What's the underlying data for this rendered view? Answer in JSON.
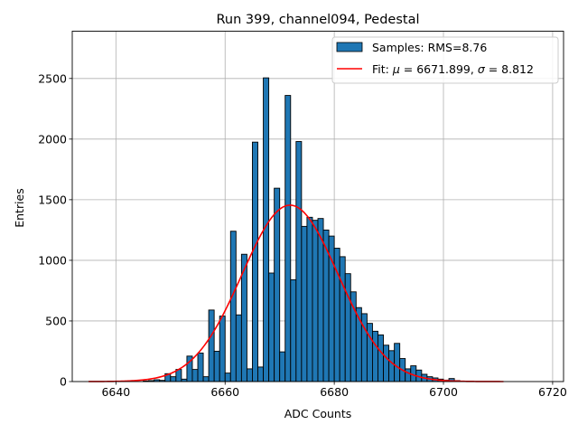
{
  "chart_data": {
    "type": "histogram",
    "title": "Run 399, channel094, Pedestal",
    "xlabel": "ADC Counts",
    "ylabel": "Entries",
    "xlim": [
      6632,
      6722
    ],
    "ylim": [
      0,
      2890
    ],
    "xticks": [
      6640,
      6660,
      6680,
      6700,
      6720
    ],
    "yticks": [
      0,
      500,
      1000,
      1500,
      2000,
      2500
    ],
    "grid": true,
    "legend": {
      "position": "top-right",
      "samples_label": "Samples: RMS=8.76",
      "fit_label_prefix": "Fit: ",
      "mu_symbol": "μ",
      "mu_text": " = 6671.899, ",
      "sigma_symbol": "σ",
      "sigma_text": " = 8.812"
    },
    "bar_color": "#1f77b4",
    "fit_color": "#ff0000",
    "bin_width": 1,
    "bins": [
      [
        6645,
        5
      ],
      [
        6646,
        8
      ],
      [
        6647,
        15
      ],
      [
        6648,
        10
      ],
      [
        6649,
        65
      ],
      [
        6650,
        40
      ],
      [
        6651,
        100
      ],
      [
        6652,
        20
      ],
      [
        6653,
        210
      ],
      [
        6654,
        100
      ],
      [
        6655,
        235
      ],
      [
        6656,
        40
      ],
      [
        6657,
        590
      ],
      [
        6658,
        250
      ],
      [
        6659,
        540
      ],
      [
        6660,
        70
      ],
      [
        6661,
        1240
      ],
      [
        6662,
        550
      ],
      [
        6663,
        1050
      ],
      [
        6664,
        105
      ],
      [
        6665,
        1975
      ],
      [
        6666,
        120
      ],
      [
        6667,
        2505
      ],
      [
        6668,
        895
      ],
      [
        6669,
        1595
      ],
      [
        6670,
        245
      ],
      [
        6671,
        2360
      ],
      [
        6672,
        840
      ],
      [
        6673,
        1980
      ],
      [
        6674,
        1280
      ],
      [
        6675,
        1355
      ],
      [
        6676,
        1330
      ],
      [
        6677,
        1345
      ],
      [
        6678,
        1250
      ],
      [
        6679,
        1200
      ],
      [
        6680,
        1100
      ],
      [
        6681,
        1030
      ],
      [
        6682,
        890
      ],
      [
        6683,
        740
      ],
      [
        6684,
        610
      ],
      [
        6685,
        560
      ],
      [
        6686,
        480
      ],
      [
        6687,
        415
      ],
      [
        6688,
        385
      ],
      [
        6689,
        300
      ],
      [
        6690,
        255
      ],
      [
        6691,
        315
      ],
      [
        6692,
        190
      ],
      [
        6693,
        105
      ],
      [
        6694,
        130
      ],
      [
        6695,
        95
      ],
      [
        6696,
        60
      ],
      [
        6697,
        40
      ],
      [
        6698,
        30
      ],
      [
        6699,
        20
      ],
      [
        6700,
        12
      ],
      [
        6701,
        25
      ],
      [
        6702,
        8
      ]
    ],
    "fit": {
      "mu": 6671.899,
      "sigma": 8.812,
      "amplitude": 1455,
      "x_range": [
        6635,
        6711
      ]
    }
  }
}
